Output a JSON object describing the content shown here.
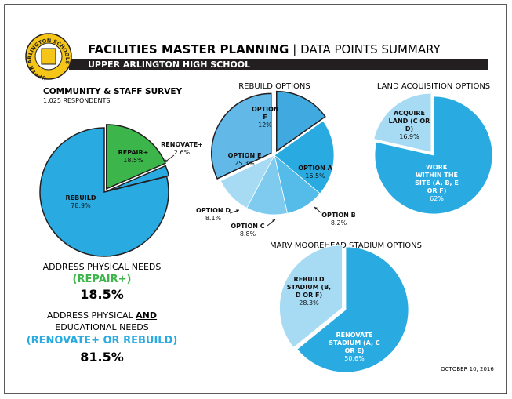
{
  "header": {
    "title": "FACILITIES MASTER PLANNING",
    "title_suffix": "| DATA POINTS SUMMARY",
    "subtitle": "UPPER ARLINGTON HIGH SCHOOL",
    "logo_ring": "UPPER ARLINGTON SCHOOLS"
  },
  "chart_data": [
    {
      "type": "pie",
      "title": "COMMUNITY & STAFF SURVEY",
      "subtitle": "1,025 RESPONDENTS",
      "categories": [
        "REPAIR+",
        "RENOVATE+",
        "REBUILD"
      ],
      "values": [
        18.5,
        2.6,
        78.9
      ],
      "value_labels": [
        "18.5%",
        "2.6%",
        "78.9%"
      ],
      "colors": [
        "#3cb54a",
        "#29abe2",
        "#29abe2"
      ]
    },
    {
      "type": "pie",
      "title": "REBUILD OPTIONS",
      "categories": [
        "OPTION F",
        "OPTION A",
        "OPTION B",
        "OPTION C",
        "OPTION D",
        "OPTION E"
      ],
      "values": [
        12,
        16.5,
        8.2,
        8.8,
        8.1,
        25.3
      ],
      "value_labels": [
        "12%",
        "16.5%",
        "8.2%",
        "8.8%",
        "8.1%",
        "25.3%"
      ],
      "colors": [
        "#3fa9e0",
        "#29abe2",
        "#55bbe9",
        "#7fcaef",
        "#a7dbf4",
        "#62b9e8"
      ]
    },
    {
      "type": "pie",
      "title": "LAND ACQUISITION OPTIONS",
      "categories": [
        "WORK WITHIN THE SITE (A, B, E OR F)",
        "ACQUIRE LAND (C OR D)"
      ],
      "values": [
        62,
        16.9
      ],
      "value_labels": [
        "62%",
        "16.9%"
      ],
      "colors": [
        "#29abe2",
        "#a7dbf4"
      ]
    },
    {
      "type": "pie",
      "title": "MARV MOOREHEAD STADIUM OPTIONS",
      "categories": [
        "RENOVATE STADIUM (A, C OR E)",
        "REBUILD STADIUM (B, D OR F)"
      ],
      "values": [
        50.6,
        28.3
      ],
      "value_labels": [
        "50.6%",
        "28.3%"
      ],
      "colors": [
        "#29abe2",
        "#a7dbf4"
      ]
    }
  ],
  "summary": {
    "physical": {
      "label": "ADDRESS PHYSICAL NEEDS",
      "option": "(REPAIR+)",
      "value": "18.5%"
    },
    "educational": {
      "label_parts": [
        "ADDRESS PHYSICAL",
        "AND",
        "EDUCATIONAL NEEDS"
      ],
      "option": "(RENOVATE+ OR REBUILD)",
      "value": "81.5%"
    }
  },
  "date": "OCTOBER 10, 2016"
}
